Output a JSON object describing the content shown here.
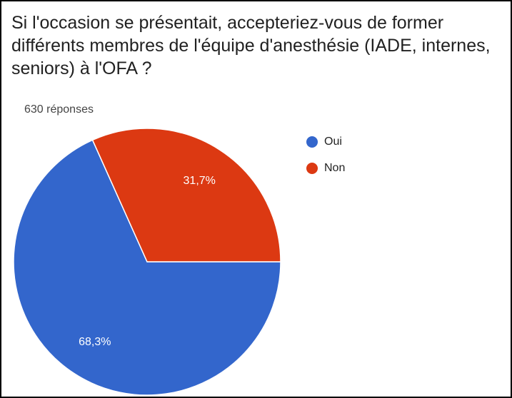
{
  "chart_data": {
    "type": "pie",
    "title": "Si l'occasion se présentait, accepteriez-vous de former différents membres de l'équipe d'anesthésie (IADE, internes, seniors) à l'OFA ?",
    "subtitle": "630 réponses",
    "categories": [
      "Oui",
      "Non"
    ],
    "values": [
      68.3,
      31.7
    ],
    "value_labels": [
      "68,3%",
      "31,7%"
    ],
    "colors": [
      "#3366cc",
      "#dc3912"
    ],
    "legend": "right"
  }
}
